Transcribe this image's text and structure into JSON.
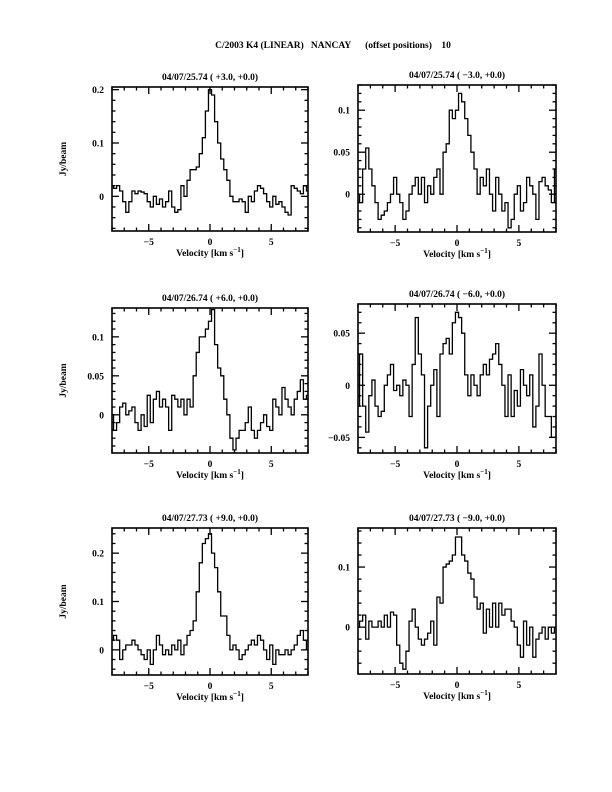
{
  "figure_title": "C/2003 K4 (LINEAR)   NANCAY      (offset positions)    10",
  "chart_data": [
    {
      "type": "line",
      "style": "histogram-step",
      "title": "04/07/25.74  ( +3.0, +0.0)",
      "xlabel": {
        "main": "Velocity [km s",
        "sup": "−1",
        "close": "]"
      },
      "ylabel": "Jy/beam",
      "xlim": [
        -8,
        8
      ],
      "ylim": [
        -0.065,
        0.205
      ],
      "xticks": [
        -5,
        0,
        5
      ],
      "yticks": [
        0,
        0.1,
        0.2
      ],
      "ytick_labels": [
        "0",
        "0.1",
        "0.2"
      ],
      "velocity_start": -8,
      "channel_width": 0.25,
      "values": [
        0.02,
        0.015,
        0.02,
        0.01,
        -0.01,
        -0.03,
        -0.01,
        0.01,
        0.005,
        0.01,
        0.008,
        0.005,
        -0.01,
        -0.02,
        0.0,
        -0.015,
        -0.005,
        -0.02,
        -0.01,
        0.01,
        -0.02,
        -0.03,
        -0.025,
        0.02,
        0.0,
        0.03,
        0.05,
        0.05,
        0.055,
        0.08,
        0.11,
        0.16,
        0.2,
        0.19,
        0.14,
        0.1,
        0.07,
        0.05,
        0.03,
        0.0,
        -0.01,
        -0.01,
        -0.005,
        -0.01,
        -0.03,
        0.0,
        -0.01,
        0.01,
        0.02,
        0.015,
        0.005,
        -0.01,
        -0.02,
        0.0,
        -0.015,
        -0.01,
        -0.02,
        -0.03,
        -0.035,
        0.02,
        0.015,
        0.01,
        0.005,
        0.02,
        0.01
      ]
    },
    {
      "type": "line",
      "style": "histogram-step",
      "title": "04/07/25.74  ( −3.0, +0.0)",
      "xlabel": {
        "main": "Velocity [km s",
        "sup": "−1",
        "close": "]"
      },
      "ylabel": "",
      "xlim": [
        -8,
        8
      ],
      "ylim": [
        -0.045,
        0.13
      ],
      "xticks": [
        -5,
        0,
        5
      ],
      "yticks": [
        0,
        0.05,
        0.1
      ],
      "ytick_labels": [
        "0",
        "0.05",
        "0.1"
      ],
      "velocity_start": -8,
      "channel_width": 0.25,
      "values": [
        0.0,
        -0.01,
        0.03,
        0.055,
        0.03,
        0.01,
        -0.01,
        -0.03,
        -0.025,
        -0.02,
        -0.01,
        0.0,
        0.02,
        0.0,
        -0.01,
        -0.03,
        -0.02,
        0.0,
        0.01,
        0.02,
        0.0,
        0.02,
        -0.01,
        0.01,
        0.0,
        0.02,
        0.03,
        0.0,
        0.05,
        0.06,
        0.1,
        0.09,
        0.1,
        0.12,
        0.11,
        0.09,
        0.07,
        0.05,
        0.03,
        0.0,
        0.02,
        0.01,
        0.03,
        0.0,
        -0.02,
        0.02,
        0.0,
        -0.02,
        -0.01,
        -0.04,
        -0.03,
        0.0,
        0.01,
        -0.02,
        -0.01,
        0.02,
        0.01,
        0.0,
        -0.03,
        0.015,
        0.02,
        0.01,
        0.005,
        -0.01,
        0.03
      ]
    },
    {
      "type": "line",
      "style": "histogram-step",
      "title": "04/07/26.74  ( +6.0, +0.0)",
      "xlabel": {
        "main": "Velocity [km s",
        "sup": "−1",
        "close": "]"
      },
      "ylabel": "Jy/beam",
      "xlim": [
        -8,
        8
      ],
      "ylim": [
        -0.049,
        0.137
      ],
      "xticks": [
        -5,
        0,
        5
      ],
      "yticks": [
        0,
        0.05,
        0.1
      ],
      "ytick_labels": [
        "0",
        "0.05",
        "0.1"
      ],
      "velocity_start": -8,
      "channel_width": 0.25,
      "values": [
        0.0,
        -0.02,
        -0.01,
        0.01,
        0.015,
        0.0,
        0.005,
        0.01,
        -0.01,
        -0.02,
        0.0,
        -0.015,
        0.025,
        -0.01,
        0.02,
        0.03,
        0.01,
        0.02,
        0.01,
        -0.02,
        0.025,
        0.02,
        0.01,
        0.02,
        0.0,
        0.02,
        0.01,
        0.05,
        0.08,
        0.1,
        0.1,
        0.11,
        0.12,
        0.135,
        0.09,
        0.06,
        0.05,
        0.02,
        0.0,
        -0.03,
        -0.045,
        -0.03,
        -0.02,
        -0.02,
        -0.01,
        0.01,
        -0.02,
        -0.03,
        -0.02,
        -0.01,
        0.0,
        -0.015,
        -0.02,
        0.02,
        0.01,
        0.0,
        0.035,
        0.02,
        0.01,
        0.0,
        0.02,
        0.03,
        0.045,
        0.02,
        0.025
      ]
    },
    {
      "type": "line",
      "style": "histogram-step",
      "title": "04/07/26.74  ( −6.0, +0.0)",
      "xlabel": {
        "main": "Velocity [km s",
        "sup": "−1",
        "close": "]"
      },
      "ylabel": "",
      "xlim": [
        -8,
        8
      ],
      "ylim": [
        -0.065,
        0.078
      ],
      "xticks": [
        -5,
        0,
        5
      ],
      "yticks": [
        -0.05,
        0,
        0.05
      ],
      "ytick_labels": [
        "−0.05",
        "0",
        "0.05"
      ],
      "velocity_start": -8,
      "channel_width": 0.25,
      "values": [
        -0.02,
        0.03,
        -0.02,
        -0.045,
        -0.01,
        0.005,
        -0.02,
        -0.03,
        -0.025,
        0.0,
        0.01,
        0.02,
        -0.005,
        0.0,
        -0.01,
        0.005,
        0.0,
        -0.03,
        0.02,
        0.065,
        0.03,
        0.01,
        -0.06,
        -0.02,
        0.0,
        0.015,
        -0.03,
        0.03,
        0.04,
        0.045,
        0.03,
        0.06,
        0.07,
        0.065,
        0.05,
        0.01,
        -0.01,
        0.01,
        0.0,
        -0.01,
        0.01,
        0.02,
        0.01,
        0.025,
        0.03,
        0.04,
        0.02,
        0.0,
        -0.03,
        0.01,
        -0.03,
        -0.005,
        -0.02,
        0.015,
        0.0,
        -0.01,
        0.01,
        -0.04,
        -0.02,
        0.03,
        0.0,
        -0.03,
        -0.03,
        -0.05,
        -0.05
      ]
    },
    {
      "type": "line",
      "style": "histogram-step",
      "title": "04/07/27.73  ( +9.0, +0.0)",
      "xlabel": {
        "main": "Velocity [km s",
        "sup": "−1",
        "close": "]"
      },
      "ylabel": "Jy/beam",
      "xlim": [
        -8,
        8
      ],
      "ylim": [
        -0.052,
        0.252
      ],
      "xticks": [
        -5,
        0,
        5
      ],
      "yticks": [
        0,
        0.1,
        0.2
      ],
      "ytick_labels": [
        "0",
        "0.1",
        "0.2"
      ],
      "velocity_start": -8,
      "channel_width": 0.25,
      "values": [
        0.02,
        0.03,
        0.02,
        -0.02,
        0.0,
        0.01,
        0.01,
        0.02,
        0.01,
        0.0,
        -0.01,
        -0.02,
        0.0,
        -0.03,
        0.0,
        0.03,
        0.01,
        -0.01,
        0.0,
        -0.01,
        0.01,
        0.0,
        0.02,
        -0.01,
        0.01,
        0.03,
        0.04,
        0.06,
        0.12,
        0.18,
        0.22,
        0.23,
        0.24,
        0.2,
        0.17,
        0.12,
        0.07,
        0.07,
        0.03,
        0.0,
        0.01,
        0.0,
        -0.02,
        -0.01,
        0.0,
        0.01,
        0.02,
        0.01,
        0.03,
        0.02,
        0.0,
        -0.02,
        0.01,
        -0.03,
        0.0,
        -0.01,
        -0.01,
        0.0,
        -0.01,
        0.0,
        0.01,
        0.03,
        0.04,
        0.02,
        0.0
      ]
    },
    {
      "type": "line",
      "style": "histogram-step",
      "title": "04/07/27.73  ( −9.0, +0.0)",
      "xlabel": {
        "main": "Velocity [km s",
        "sup": "−1",
        "close": "]"
      },
      "ylabel": "",
      "xlim": [
        -8,
        8
      ],
      "ylim": [
        -0.078,
        0.165
      ],
      "xticks": [
        -5,
        0,
        5
      ],
      "yticks": [
        0,
        0.1
      ],
      "ytick_labels": [
        "0",
        "0.1"
      ],
      "velocity_start": -8,
      "channel_width": 0.25,
      "values": [
        0.0,
        0.01,
        0.02,
        -0.02,
        0.01,
        0.0,
        0.0,
        0.01,
        0.0,
        0.02,
        0.0,
        0.025,
        0.02,
        -0.03,
        -0.06,
        -0.07,
        -0.04,
        0.01,
        0.03,
        0.0,
        -0.02,
        -0.03,
        -0.02,
        -0.01,
        0.01,
        -0.03,
        0.05,
        0.04,
        0.1,
        0.105,
        0.11,
        0.12,
        0.15,
        0.15,
        0.12,
        0.11,
        0.09,
        0.08,
        0.05,
        0.03,
        0.04,
        -0.01,
        0.03,
        0.0,
        0.04,
        0.0,
        0.04,
        0.02,
        0.03,
        0.03,
        0.01,
        0.0,
        -0.03,
        -0.05,
        0.01,
        -0.03,
        0.0,
        -0.05,
        -0.02,
        -0.01,
        0.0,
        -0.02,
        0.0,
        -0.01,
        0.0
      ]
    }
  ]
}
